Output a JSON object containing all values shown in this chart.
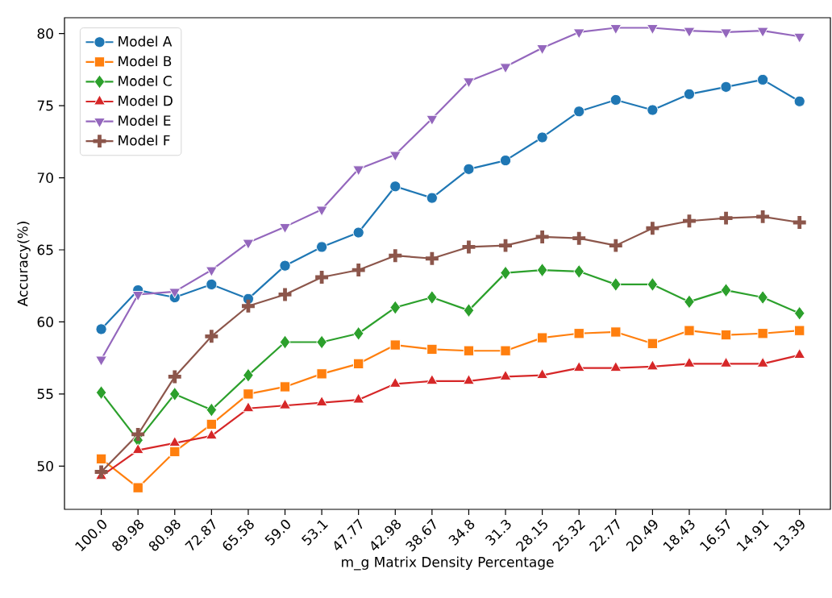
{
  "chart_data": {
    "type": "line",
    "xlabel": "m_g Matrix Density Percentage",
    "ylabel": "Accuracy(%)",
    "categories": [
      "100.0",
      "89.98",
      "80.98",
      "72.87",
      "65.58",
      "59.0",
      "53.1",
      "47.77",
      "42.98",
      "38.67",
      "34.8",
      "31.3",
      "28.15",
      "25.32",
      "22.77",
      "20.49",
      "18.43",
      "16.57",
      "14.91",
      "13.39"
    ],
    "ylim": [
      47.0,
      81.1
    ],
    "yticks": [
      50,
      55,
      60,
      65,
      70,
      75,
      80
    ],
    "grid": false,
    "legend": "top left",
    "line_style": "solid",
    "series": [
      {
        "name": "Model A",
        "color": "#1f77b4",
        "marker": "circle",
        "values": [
          59.5,
          62.2,
          61.7,
          62.6,
          61.6,
          63.9,
          65.2,
          66.2,
          69.4,
          68.6,
          70.6,
          71.2,
          72.8,
          74.6,
          75.4,
          74.7,
          75.8,
          76.3,
          76.8,
          75.3
        ]
      },
      {
        "name": "Model B",
        "color": "#ff7f0e",
        "marker": "square",
        "values": [
          50.5,
          48.5,
          51.0,
          52.9,
          55.0,
          55.5,
          56.4,
          57.1,
          58.4,
          58.1,
          58.0,
          58.0,
          58.9,
          59.2,
          59.3,
          58.5,
          59.4,
          59.1,
          59.2,
          59.4
        ]
      },
      {
        "name": "Model C",
        "color": "#2ca02c",
        "marker": "diamond",
        "values": [
          55.1,
          51.8,
          55.0,
          53.9,
          56.3,
          58.6,
          58.6,
          59.2,
          61.0,
          61.7,
          60.8,
          63.4,
          63.6,
          63.5,
          62.6,
          62.6,
          61.4,
          62.2,
          61.7,
          60.6
        ]
      },
      {
        "name": "Model D",
        "color": "#d62728",
        "marker": "triangle",
        "values": [
          49.3,
          51.1,
          51.6,
          52.1,
          54.0,
          54.2,
          54.4,
          54.6,
          55.7,
          55.9,
          55.9,
          56.2,
          56.3,
          56.8,
          56.8,
          56.9,
          57.1,
          57.1,
          57.1,
          57.7
        ]
      },
      {
        "name": "Model E",
        "color": "#9467bd",
        "marker": "triangle_down",
        "values": [
          57.4,
          61.9,
          62.1,
          63.6,
          65.5,
          66.6,
          67.8,
          70.6,
          71.6,
          74.1,
          76.7,
          77.7,
          79.0,
          80.1,
          80.4,
          80.4,
          80.2,
          80.1,
          80.2,
          79.8
        ]
      },
      {
        "name": "Model F",
        "color": "#8c564b",
        "marker": "cross",
        "values": [
          49.6,
          52.2,
          56.2,
          59.0,
          61.1,
          61.9,
          63.1,
          63.6,
          64.6,
          64.4,
          65.2,
          65.3,
          65.9,
          65.8,
          65.3,
          66.5,
          67.0,
          67.2,
          67.3,
          66.9
        ]
      }
    ]
  }
}
